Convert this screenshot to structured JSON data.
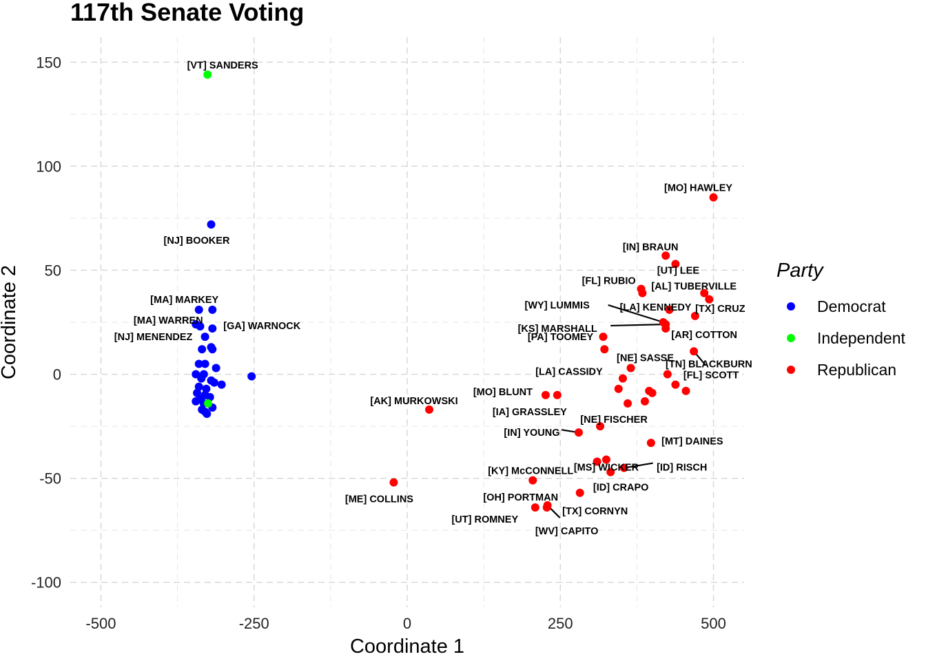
{
  "chart_data": {
    "type": "scatter",
    "title": "117th Senate Voting",
    "xlabel": "Coordinate 1",
    "ylabel": "Coordinate 2",
    "xlim": [
      -550,
      550
    ],
    "ylim": [
      -112,
      162
    ],
    "x_ticks": [
      -500,
      -250,
      0,
      250,
      500
    ],
    "x_tick_labels": [
      "-500",
      "-250",
      "0",
      "250",
      "500"
    ],
    "y_ticks": [
      -100,
      -50,
      0,
      50,
      100,
      150
    ],
    "y_tick_labels": [
      "-100",
      "-50",
      "0",
      "50",
      "100",
      "150"
    ],
    "grid": true,
    "legend": {
      "title": "Party",
      "position": "right",
      "entries": [
        {
          "name": "Democrat",
          "color": "#0000ff"
        },
        {
          "name": "Independent",
          "color": "#00ff00"
        },
        {
          "name": "Republican",
          "color": "#ff0000"
        }
      ]
    },
    "series": [
      {
        "name": "Democrat",
        "color": "#0000ff",
        "points": [
          {
            "x": -320,
            "y": 72,
            "label": "[NJ] BOOKER"
          },
          {
            "x": -340,
            "y": 31,
            "label": "[MA] MARKEY"
          },
          {
            "x": -318,
            "y": 31
          },
          {
            "x": -345,
            "y": 24,
            "label": "[MA] WARREN"
          },
          {
            "x": -338,
            "y": 23
          },
          {
            "x": -318,
            "y": 22,
            "label": "[GA] WARNOCK"
          },
          {
            "x": -330,
            "y": 18,
            "label": "[NJ] MENENDEZ"
          },
          {
            "x": -320,
            "y": 13
          },
          {
            "x": -318,
            "y": 12
          },
          {
            "x": -335,
            "y": 12
          },
          {
            "x": -340,
            "y": 5
          },
          {
            "x": -330,
            "y": 5
          },
          {
            "x": -312,
            "y": 3
          },
          {
            "x": -345,
            "y": 0
          },
          {
            "x": -332,
            "y": 0
          },
          {
            "x": -336,
            "y": -2
          },
          {
            "x": -320,
            "y": -3
          },
          {
            "x": -315,
            "y": -4
          },
          {
            "x": -303,
            "y": -5
          },
          {
            "x": -340,
            "y": -6
          },
          {
            "x": -328,
            "y": -7
          },
          {
            "x": -343,
            "y": -9
          },
          {
            "x": -330,
            "y": -10
          },
          {
            "x": -322,
            "y": -11
          },
          {
            "x": -338,
            "y": -12
          },
          {
            "x": -345,
            "y": -13
          },
          {
            "x": -332,
            "y": -14
          },
          {
            "x": -318,
            "y": -16
          },
          {
            "x": -335,
            "y": -17
          },
          {
            "x": -330,
            "y": -18
          },
          {
            "x": -327,
            "y": -19
          },
          {
            "x": -254,
            "y": -1
          }
        ]
      },
      {
        "name": "Independent",
        "color": "#00ff00",
        "points": [
          {
            "x": -326,
            "y": 144,
            "label": "[VT] SANDERS"
          },
          {
            "x": -325,
            "y": -14
          }
        ]
      },
      {
        "name": "Republican",
        "color": "#ff0000",
        "points": [
          {
            "x": 500,
            "y": 85,
            "label": "[MO] HAWLEY"
          },
          {
            "x": 422,
            "y": 57,
            "label": "[IN] BRAUN"
          },
          {
            "x": 438,
            "y": 53,
            "label": "[UT] LEE"
          },
          {
            "x": 382,
            "y": 41,
            "label": "[FL] RUBIO"
          },
          {
            "x": 384,
            "y": 39
          },
          {
            "x": 485,
            "y": 39,
            "label": "[AL] TUBERVILLE"
          },
          {
            "x": 493,
            "y": 36,
            "label": "[TX] CRUZ"
          },
          {
            "x": 428,
            "y": 31,
            "label": "[LA] KENNEDY"
          },
          {
            "x": 470,
            "y": 28
          },
          {
            "x": 418,
            "y": 25,
            "label": "[WY] LUMMIS"
          },
          {
            "x": 422,
            "y": 24,
            "label": "[KS] MARSHALL"
          },
          {
            "x": 422,
            "y": 22,
            "label": "[AR] COTTON"
          },
          {
            "x": 320,
            "y": 18,
            "label": "[PA] TOOMEY"
          },
          {
            "x": 322,
            "y": 12
          },
          {
            "x": 468,
            "y": 11,
            "label": "[FL] SCOTT"
          },
          {
            "x": 365,
            "y": 3,
            "label": "[NE] SASSE"
          },
          {
            "x": 425,
            "y": 0,
            "label": "[TN] BLACKBURN"
          },
          {
            "x": 352,
            "y": -2,
            "label": "[LA] CASSIDY"
          },
          {
            "x": 438,
            "y": -5
          },
          {
            "x": 345,
            "y": -7
          },
          {
            "x": 395,
            "y": -8
          },
          {
            "x": 400,
            "y": -9
          },
          {
            "x": 455,
            "y": -8
          },
          {
            "x": 226,
            "y": -10,
            "label": "[MO] BLUNT"
          },
          {
            "x": 245,
            "y": -10,
            "label": "[IA] GRASSLEY"
          },
          {
            "x": 388,
            "y": -13
          },
          {
            "x": 360,
            "y": -14
          },
          {
            "x": 36,
            "y": -17,
            "label": "[AK] MURKOWSKI"
          },
          {
            "x": 315,
            "y": -25,
            "label": "[NE] FISCHER"
          },
          {
            "x": 280,
            "y": -28,
            "label": "[IN] YOUNG"
          },
          {
            "x": 398,
            "y": -33,
            "label": "[MT] DAINES"
          },
          {
            "x": 325,
            "y": -41,
            "label": "[MS] WICKER"
          },
          {
            "x": 310,
            "y": -42
          },
          {
            "x": 354,
            "y": -45,
            "label": "[ID] RISCH"
          },
          {
            "x": 332,
            "y": -47,
            "label": "[ID] CRAPO"
          },
          {
            "x": -22,
            "y": -52,
            "label": "[ME] COLLINS"
          },
          {
            "x": 205,
            "y": -51,
            "label": "[KY] McCONNELL"
          },
          {
            "x": 282,
            "y": -57,
            "label": "[OH] PORTMAN"
          },
          {
            "x": 228,
            "y": -64,
            "label": "[TX] CORNYN"
          },
          {
            "x": 209,
            "y": -64,
            "label": "[UT] ROMNEY"
          },
          {
            "x": 229,
            "y": -63,
            "label": "[WV] CAPITO"
          }
        ]
      }
    ]
  }
}
